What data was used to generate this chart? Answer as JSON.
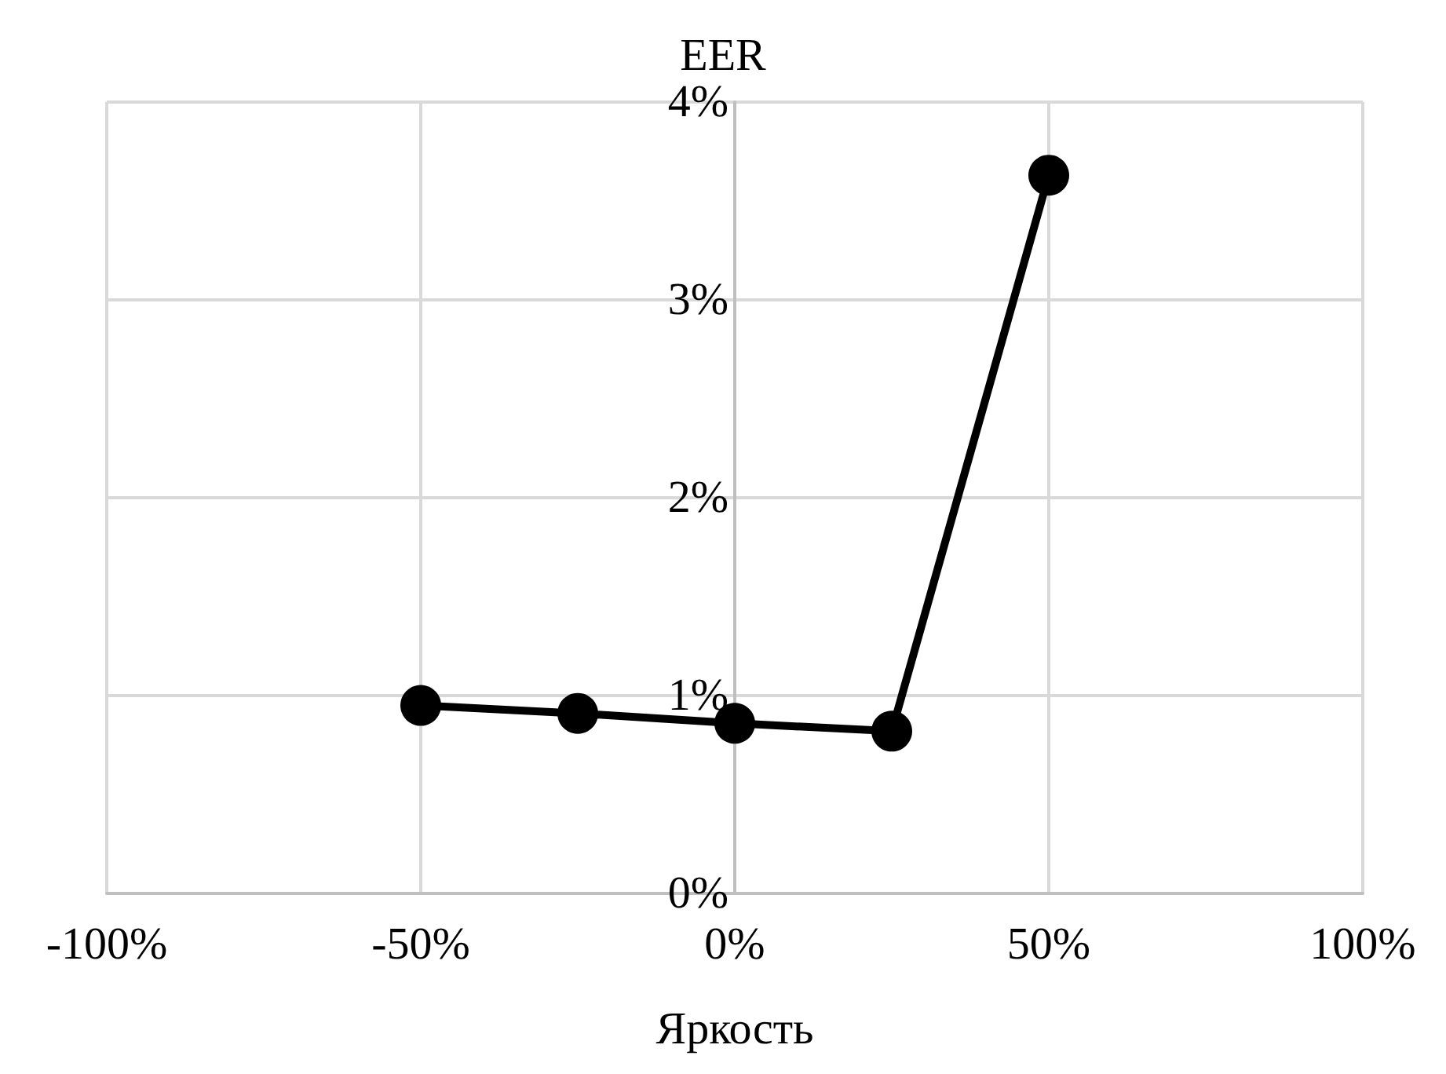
{
  "chart_data": {
    "type": "line",
    "title": "EER",
    "xlabel": "Яркость",
    "x": [
      -50,
      -25,
      0,
      25,
      50
    ],
    "series": [
      {
        "color": "#000000",
        "values": [
          0.95,
          0.91,
          0.86,
          0.82,
          3.63
        ]
      }
    ],
    "xlim": [
      -100,
      100
    ],
    "xticks": [
      {
        "value": -100,
        "label": "-100%"
      },
      {
        "value": -50,
        "label": "-50%"
      },
      {
        "value": 0,
        "label": "0%"
      },
      {
        "value": 50,
        "label": "50%"
      },
      {
        "value": 100,
        "label": "100%"
      }
    ],
    "ylim": [
      0,
      4
    ],
    "yticks": [
      {
        "value": 0,
        "label": "0%"
      },
      {
        "value": 1,
        "label": "1%"
      },
      {
        "value": 2,
        "label": "2%"
      },
      {
        "value": 3,
        "label": "3%"
      },
      {
        "value": 4,
        "label": "4%"
      }
    ],
    "grid": true,
    "marker": "circle",
    "line_style": "solid"
  }
}
